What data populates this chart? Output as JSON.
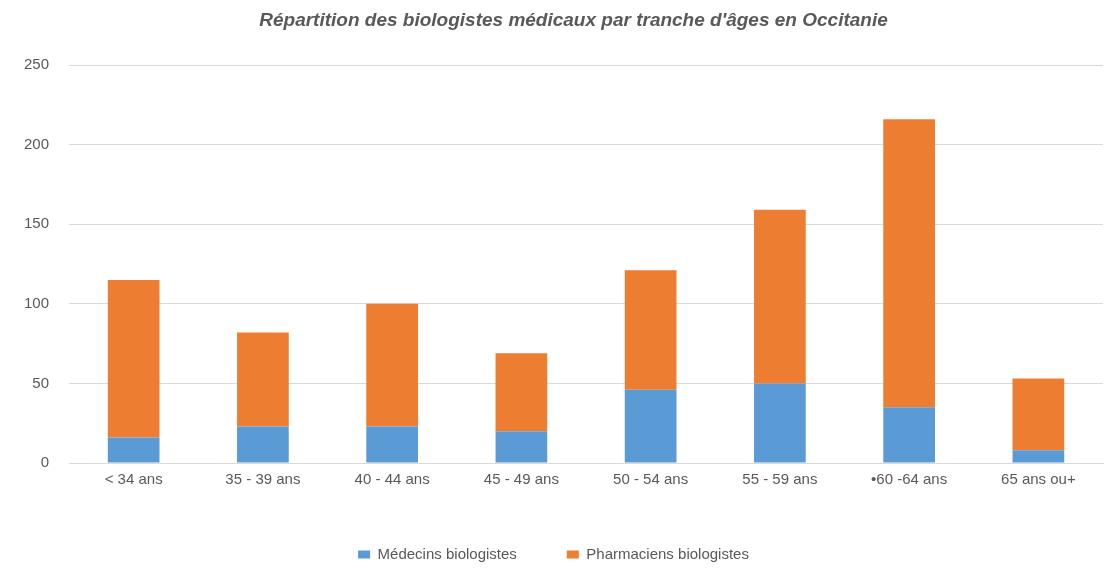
{
  "chart_data": {
    "type": "bar",
    "title": "Répartition des biologistes médicaux par tranche d'âges en Occitanie",
    "categories": [
      "< 34 ans",
      "35 - 39 ans",
      "40 - 44 ans",
      "45 - 49 ans",
      "50 - 54 ans",
      "55 - 59 ans",
      "•60 -64 ans",
      "65 ans ou+"
    ],
    "series": [
      {
        "name": "Médecins biologistes",
        "color": "#5b9bd5",
        "values": [
          16,
          23,
          23,
          20,
          46,
          50,
          35,
          8
        ]
      },
      {
        "name": "Pharmaciens biologistes",
        "color": "#ed7d31",
        "values": [
          99,
          59,
          77,
          49,
          75,
          109,
          181,
          45
        ]
      }
    ],
    "stacked": true,
    "ylim": [
      0,
      250
    ],
    "yticks": [
      0,
      50,
      100,
      150,
      200,
      250
    ],
    "grid": "y",
    "legend": "bottom"
  }
}
